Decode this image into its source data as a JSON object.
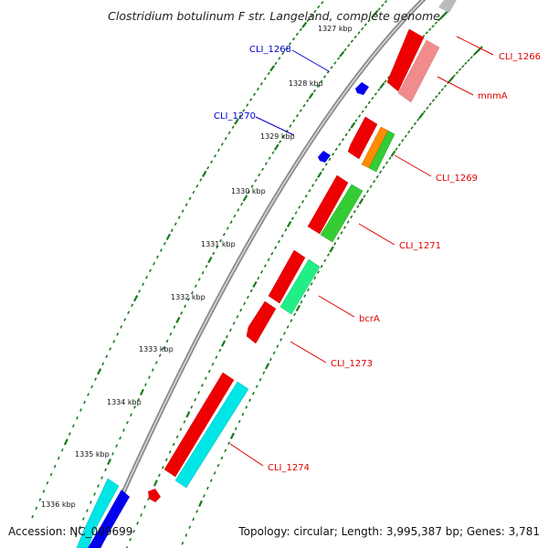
{
  "title": "Clostridium botulinum F str. Langeland, complete genome",
  "footer": {
    "accession": "Accession: NC_009699",
    "topology": "Topology: circular; Length: 3,995,387 bp; Genes: 3,781"
  },
  "kbp_labels": [
    "1327 kbp",
    "1328 kbp",
    "1329 kbp",
    "1330 kbp",
    "1331 kbp",
    "1332 kbp",
    "1333 kbp",
    "1334 kbp",
    "1335 kbp",
    "1336 kbp"
  ],
  "gene_labels": [
    {
      "text": "CLI_1268",
      "strand": "reverse"
    },
    {
      "text": "CLI_1270",
      "strand": "reverse"
    },
    {
      "text": "CLI_1266",
      "strand": "forward"
    },
    {
      "text": "mnmA",
      "strand": "forward"
    },
    {
      "text": "CLI_1269",
      "strand": "forward"
    },
    {
      "text": "CLI_1271",
      "strand": "forward"
    },
    {
      "text": "bcrA",
      "strand": "forward"
    },
    {
      "text": "CLI_1273",
      "strand": "forward"
    },
    {
      "text": "CLI_1274",
      "strand": "forward"
    }
  ],
  "colors": {
    "forward_label": "#e00000",
    "reverse_label": "#0000cc",
    "gene_red": "#ff0000",
    "gene_pink": "#f08c8c",
    "gene_orange": "#ff8c00",
    "gene_green": "#33cc33",
    "gene_springgreen": "#22ee88",
    "gene_cyan": "#00e5e5",
    "gene_blue": "#0000ee",
    "backbone": "#8a8a8a",
    "tick_green": "#1a7a1a"
  }
}
